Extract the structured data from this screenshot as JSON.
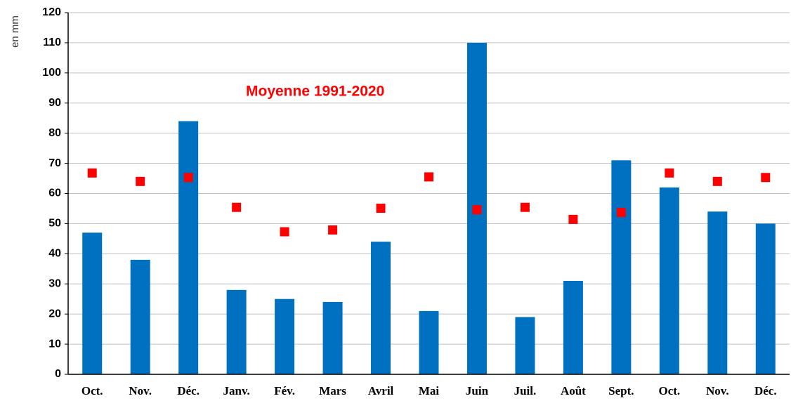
{
  "chart_data": {
    "type": "bar",
    "ylabel": "en mm",
    "categories": [
      "Oct.",
      "Nov.",
      "Déc.",
      "Janv.",
      "Fév.",
      "Mars",
      "Avril",
      "Mai",
      "Juin",
      "Juil.",
      "Août",
      "Sept.",
      "Oct.",
      "Nov.",
      "Déc."
    ],
    "series": [
      {
        "color": "#0070c0",
        "values": [
          47,
          38,
          84,
          28,
          25,
          24,
          44,
          21,
          110,
          19,
          31,
          71,
          62,
          54,
          50
        ]
      },
      {
        "name": "Moyenne 1991-2020",
        "type": "scatter",
        "color": "#ff0000",
        "values": [
          66.8,
          64,
          65.3,
          55.4,
          47.3,
          47.9,
          55.1,
          65.5,
          54.6,
          55.4,
          51.4,
          53.7,
          66.8,
          64,
          65.3
        ]
      }
    ],
    "ylim": [
      0,
      120
    ],
    "yticks": [
      0,
      10,
      20,
      30,
      40,
      50,
      60,
      70,
      80,
      90,
      100,
      110,
      120
    ],
    "grid": true
  }
}
